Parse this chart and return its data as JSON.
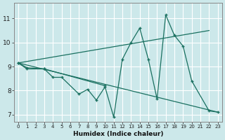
{
  "xlabel": "Humidex (Indice chaleur)",
  "background_color": "#cce8ea",
  "line_color": "#1a7060",
  "grid_color": "#ffffff",
  "grid_minor_color": "#ddeef0",
  "ylim": [
    6.7,
    11.65
  ],
  "xlim": [
    -0.5,
    23.5
  ],
  "yticks": [
    7,
    8,
    9,
    10,
    11
  ],
  "xticks": [
    0,
    1,
    2,
    3,
    4,
    5,
    6,
    7,
    8,
    9,
    10,
    11,
    12,
    13,
    14,
    15,
    16,
    17,
    18,
    19,
    20,
    21,
    22,
    23
  ],
  "line1_x": [
    0,
    1,
    3,
    4,
    5,
    7,
    8,
    9,
    10,
    11,
    12,
    13,
    14,
    15,
    16,
    17,
    18,
    19,
    20,
    22,
    23
  ],
  "line1_y": [
    9.15,
    8.9,
    8.9,
    8.55,
    8.55,
    7.85,
    8.05,
    7.6,
    8.15,
    6.9,
    9.3,
    10.0,
    10.6,
    9.3,
    7.65,
    11.15,
    10.3,
    9.85,
    8.4,
    7.15,
    7.1
  ],
  "line2_x": [
    0,
    22
  ],
  "line2_y": [
    9.15,
    10.5
  ],
  "line3_x": [
    0,
    23
  ],
  "line3_y": [
    9.15,
    7.1
  ],
  "line4_x": [
    0,
    1,
    3,
    10
  ],
  "line4_y": [
    9.15,
    8.95,
    8.9,
    8.2
  ]
}
